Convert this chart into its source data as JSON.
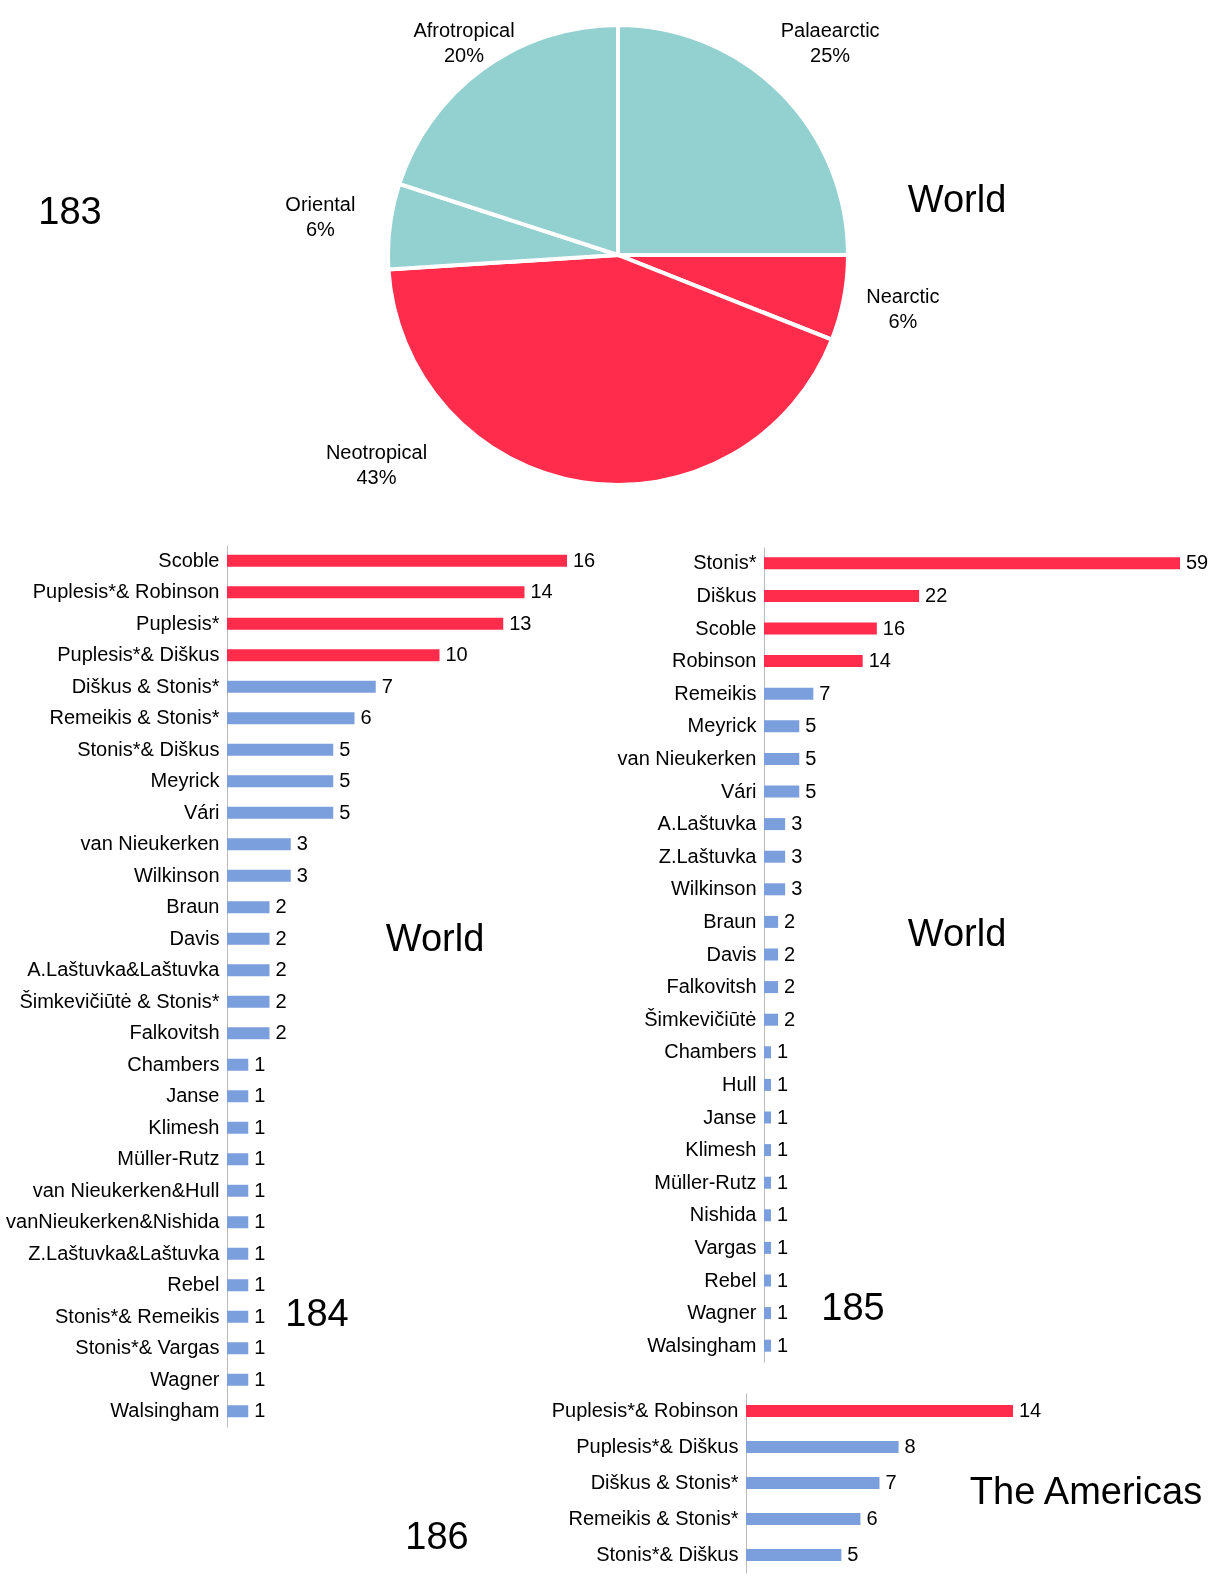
{
  "chart_data": [
    {
      "type": "pie",
      "title": "World",
      "categories": [
        "Palaearctic",
        "Nearctic",
        "Neotropical",
        "Oriental",
        "Afrotropical"
      ],
      "values": [
        25,
        6,
        43,
        6,
        20
      ],
      "value_labels": [
        "25%",
        "6%",
        "43%",
        "6%",
        "20%"
      ],
      "colors": [
        "#93d0d0",
        "#ff2d4b",
        "#ff2d4b",
        "#93d0d0",
        "#93d0d0"
      ],
      "annotations": [
        "183"
      ]
    },
    {
      "type": "bar",
      "orientation": "horizontal",
      "title": "World",
      "data_labels": true,
      "annotations": [
        "184"
      ],
      "categories": [
        "Scoble",
        "Puplesis*& Robinson",
        "Puplesis*",
        "Puplesis*& Diškus",
        "Diškus & Stonis*",
        "Remeikis & Stonis*",
        "Stonis*& Diškus",
        "Meyrick",
        "Vári",
        "van Nieukerken",
        "Wilkinson",
        "Braun",
        "Davis",
        "A.Laštuvka&Laštuvka",
        "Šimkevičiūtė & Stonis*",
        "Falkovitsh",
        "Chambers",
        "Janse",
        "Klimesh",
        "Müller-Rutz",
        "van Nieukerken&Hull",
        "vanNieukerken&Nishida",
        "Z.Laštuvka&Laštuvka",
        "Rebel",
        "Stonis*& Remeikis",
        "Stonis*& Vargas",
        "Wagner",
        "Walsingham"
      ],
      "values": [
        16,
        14,
        13,
        10,
        7,
        6,
        5,
        5,
        5,
        3,
        3,
        2,
        2,
        2,
        2,
        2,
        1,
        1,
        1,
        1,
        1,
        1,
        1,
        1,
        1,
        1,
        1,
        1
      ],
      "colors": [
        "#ff2d4b",
        "#ff2d4b",
        "#ff2d4b",
        "#ff2d4b",
        "#7b9fdc",
        "#7b9fdc",
        "#7b9fdc",
        "#7b9fdc",
        "#7b9fdc",
        "#7b9fdc",
        "#7b9fdc",
        "#7b9fdc",
        "#7b9fdc",
        "#7b9fdc",
        "#7b9fdc",
        "#7b9fdc",
        "#7b9fdc",
        "#7b9fdc",
        "#7b9fdc",
        "#7b9fdc",
        "#7b9fdc",
        "#7b9fdc",
        "#7b9fdc",
        "#7b9fdc",
        "#7b9fdc",
        "#7b9fdc",
        "#7b9fdc",
        "#7b9fdc"
      ]
    },
    {
      "type": "bar",
      "orientation": "horizontal",
      "title": "World",
      "data_labels": true,
      "annotations": [
        "185"
      ],
      "categories": [
        "Stonis*",
        "Diškus",
        "Scoble",
        "Robinson",
        "Remeikis",
        "Meyrick",
        "van Nieukerken",
        "Vári",
        "A.Laštuvka",
        "Z.Laštuvka",
        "Wilkinson",
        "Braun",
        "Davis",
        "Falkovitsh",
        "Šimkevičiūtė",
        "Chambers",
        "Hull",
        "Janse",
        "Klimesh",
        "Müller-Rutz",
        "Nishida",
        "Vargas",
        "Rebel",
        "Wagner",
        "Walsingham"
      ],
      "values": [
        59,
        22,
        16,
        14,
        7,
        5,
        5,
        5,
        3,
        3,
        3,
        2,
        2,
        2,
        2,
        1,
        1,
        1,
        1,
        1,
        1,
        1,
        1,
        1,
        1
      ],
      "colors": [
        "#ff2d4b",
        "#ff2d4b",
        "#ff2d4b",
        "#ff2d4b",
        "#7b9fdc",
        "#7b9fdc",
        "#7b9fdc",
        "#7b9fdc",
        "#7b9fdc",
        "#7b9fdc",
        "#7b9fdc",
        "#7b9fdc",
        "#7b9fdc",
        "#7b9fdc",
        "#7b9fdc",
        "#7b9fdc",
        "#7b9fdc",
        "#7b9fdc",
        "#7b9fdc",
        "#7b9fdc",
        "#7b9fdc",
        "#7b9fdc",
        "#7b9fdc",
        "#7b9fdc",
        "#7b9fdc"
      ]
    },
    {
      "type": "bar",
      "orientation": "horizontal",
      "title": "The Americas",
      "data_labels": true,
      "annotations": [
        "186"
      ],
      "categories": [
        "Puplesis*& Robinson",
        "Puplesis*& Diškus",
        "Diškus & Stonis*",
        "Remeikis & Stonis*",
        "Stonis*& Diškus"
      ],
      "values": [
        14,
        8,
        7,
        6,
        5
      ],
      "colors": [
        "#ff2d4b",
        "#7b9fdc",
        "#7b9fdc",
        "#7b9fdc",
        "#7b9fdc"
      ]
    }
  ]
}
